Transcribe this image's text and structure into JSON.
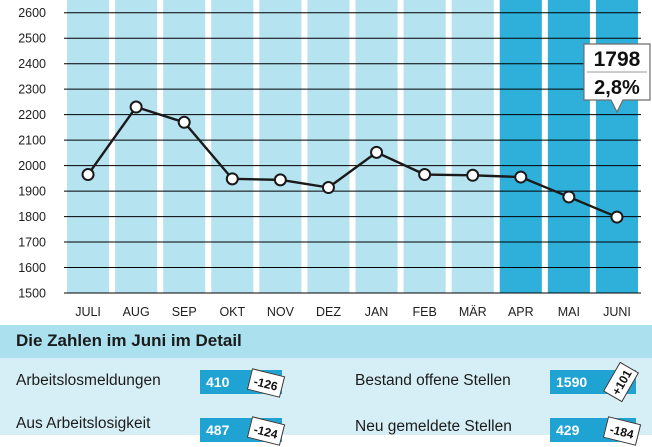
{
  "chart_data": {
    "type": "line",
    "categories": [
      "JULI",
      "AUG",
      "SEP",
      "OKT",
      "NOV",
      "DEZ",
      "JAN",
      "FEB",
      "MÄR",
      "APR",
      "MAI",
      "JUNI"
    ],
    "values": [
      1965,
      2230,
      2170,
      1948,
      1944,
      1914,
      2052,
      1965,
      1962,
      1955,
      1877,
      1798
    ],
    "highlighted_categories": [
      "APR",
      "MAI",
      "JUNI"
    ],
    "ylim": [
      1500,
      2650
    ],
    "yticks": [
      1500,
      1600,
      1700,
      1800,
      1900,
      2000,
      2100,
      2200,
      2300,
      2400,
      2500,
      2600
    ],
    "grid": true,
    "title": "",
    "xlabel": "",
    "ylabel": "",
    "callout": {
      "value": "1798",
      "percent": "2,8%"
    }
  },
  "colors": {
    "column_light": "#b6e3f0",
    "column_highlight": "#2eb0db",
    "gridline": "#000000",
    "line": "#1a1a1a",
    "header_bg": "#abe0ee",
    "panel_bg": "#d6eff6",
    "box_bg": "#1ea3d3"
  },
  "detail": {
    "title": "Die Zahlen im Juni im Detail",
    "items": [
      {
        "label": "Arbeitslosmeldungen",
        "value": "410",
        "change": "-126"
      },
      {
        "label": "Bestand offene Stellen",
        "value": "1590",
        "change": "+101"
      },
      {
        "label": "Aus Arbeitslosigkeit",
        "value": "487",
        "change": "-124"
      },
      {
        "label": "Neu gemeldete Stellen",
        "value": "429",
        "change": "-184"
      }
    ]
  }
}
